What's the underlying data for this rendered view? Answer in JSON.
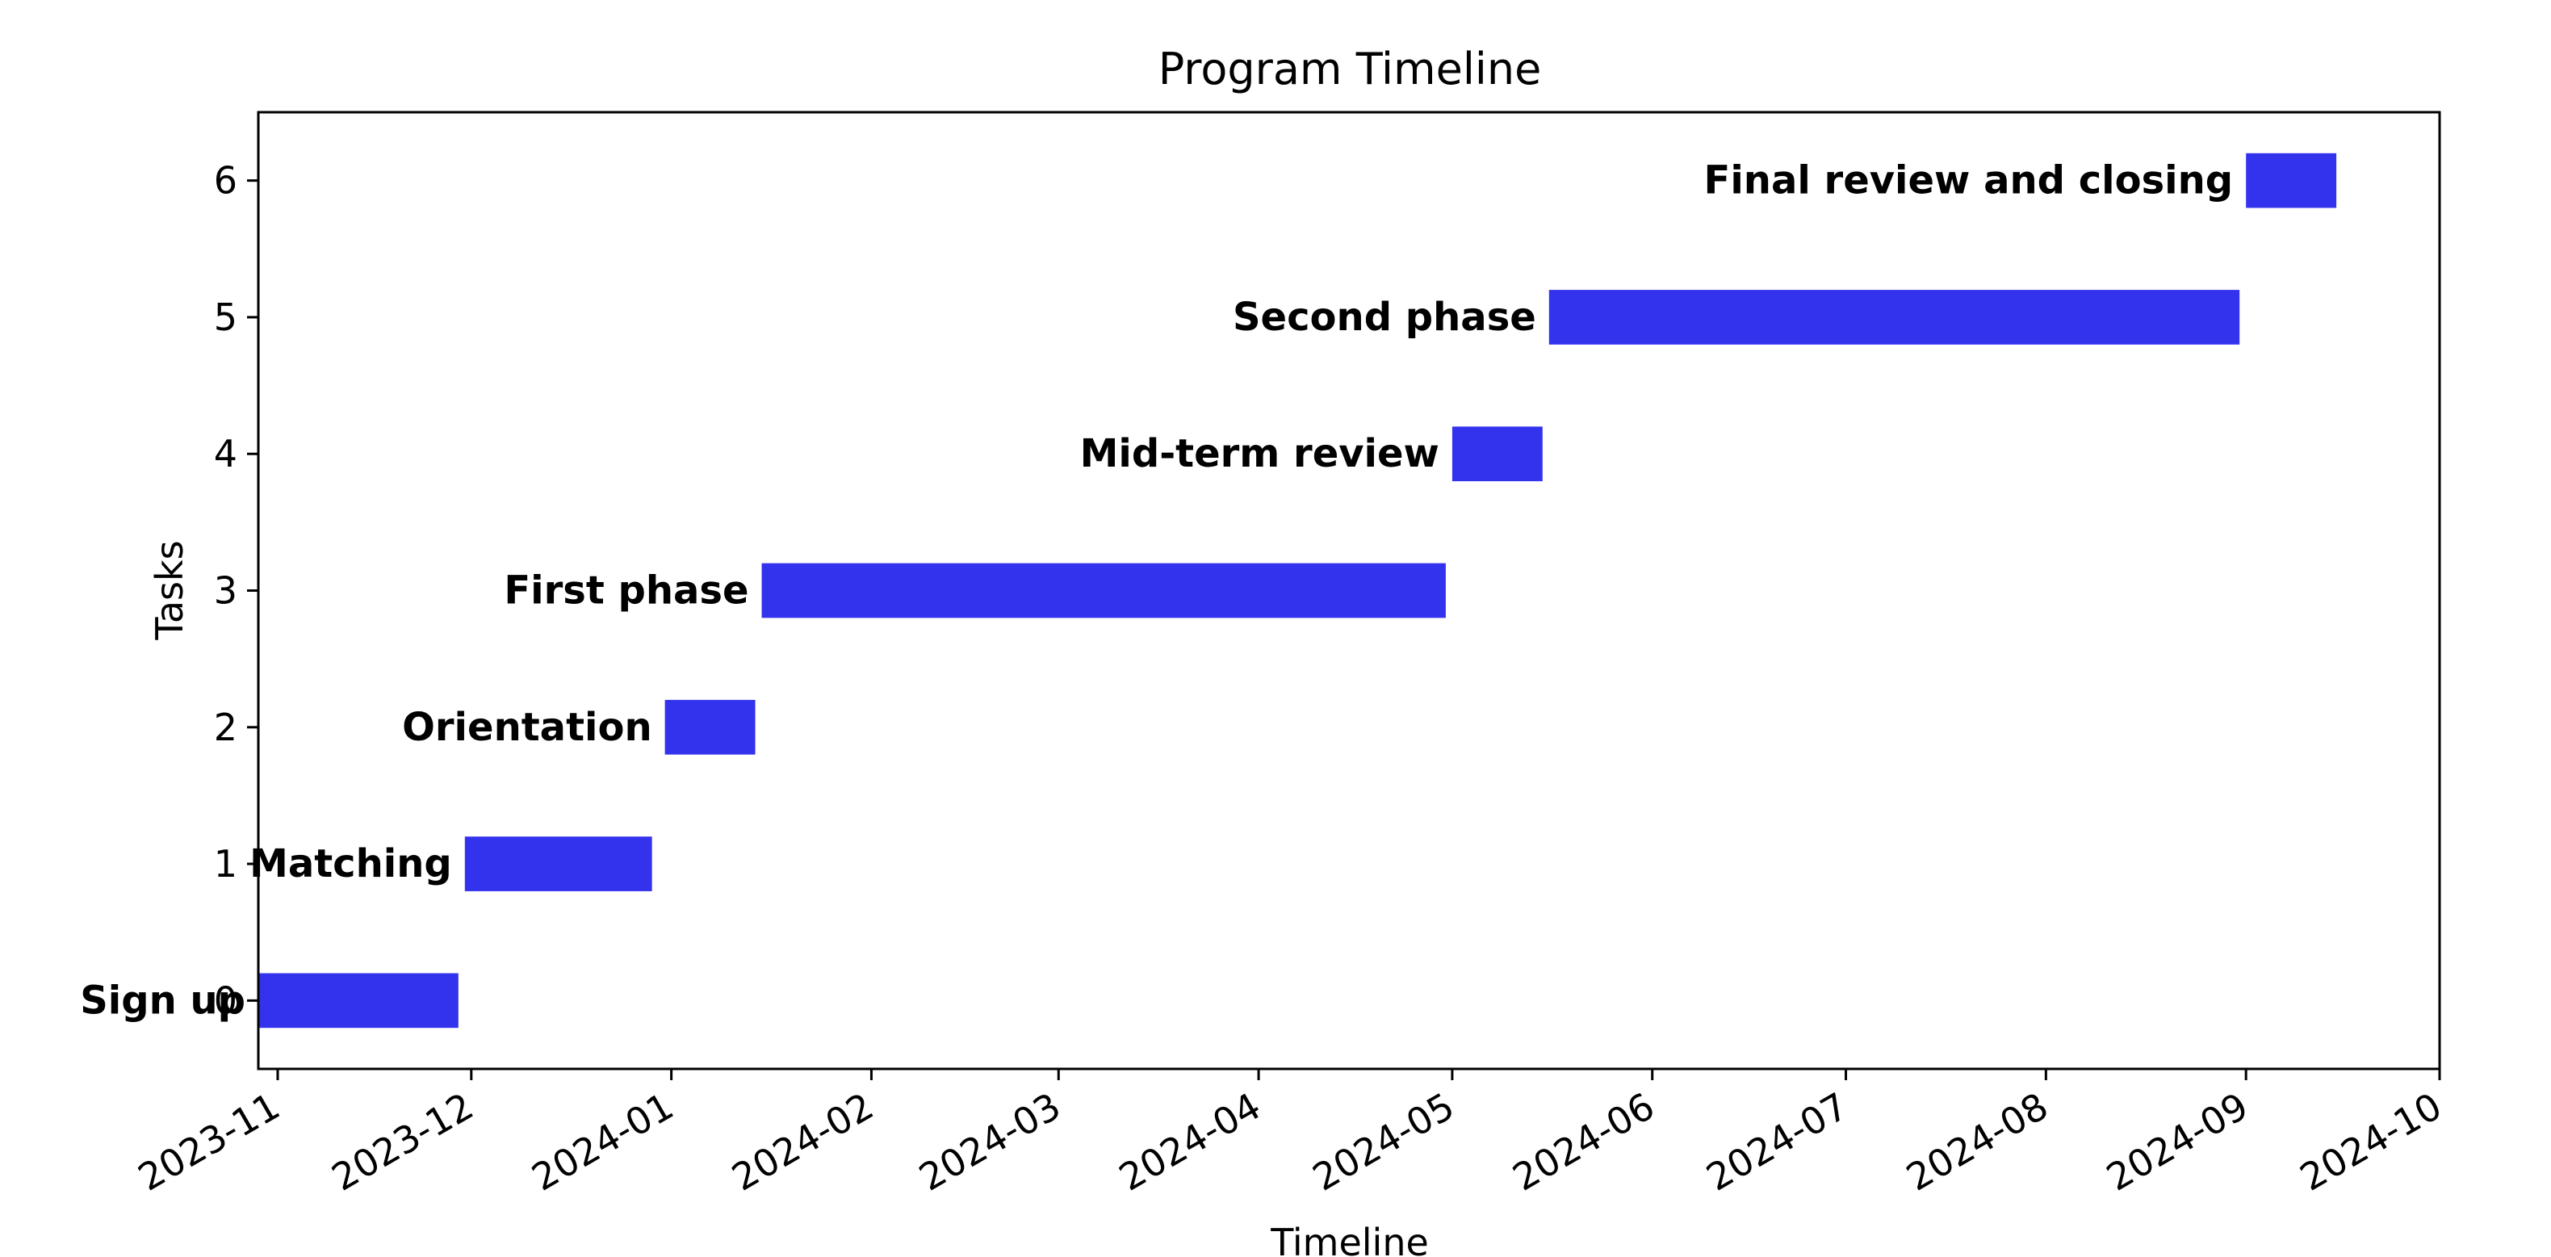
{
  "chart_data": {
    "type": "bar",
    "orientation": "horizontal",
    "title": "Program Timeline",
    "xlabel": "Timeline",
    "ylabel": "Tasks",
    "bar_color": "#3333ee",
    "xlim": [
      "2023-10-29",
      "2024-10-01"
    ],
    "ylim": [
      -0.5,
      6.5
    ],
    "y_ticks": [
      0,
      1,
      2,
      3,
      4,
      5,
      6
    ],
    "x_ticks": [
      "2023-11",
      "2023-12",
      "2024-01",
      "2024-02",
      "2024-03",
      "2024-04",
      "2024-05",
      "2024-06",
      "2024-07",
      "2024-08",
      "2024-09",
      "2024-10"
    ],
    "grid": false,
    "tasks": [
      {
        "y": 0,
        "name": "Sign up",
        "start": "2023-10-29",
        "end": "2023-11-29"
      },
      {
        "y": 1,
        "name": "Matching",
        "start": "2023-11-30",
        "end": "2023-12-29"
      },
      {
        "y": 2,
        "name": "Orientation",
        "start": "2023-12-31",
        "end": "2024-01-14"
      },
      {
        "y": 3,
        "name": "First phase",
        "start": "2024-01-15",
        "end": "2024-04-30"
      },
      {
        "y": 4,
        "name": "Mid-term review",
        "start": "2024-05-01",
        "end": "2024-05-15"
      },
      {
        "y": 5,
        "name": "Second phase",
        "start": "2024-05-16",
        "end": "2024-08-31"
      },
      {
        "y": 6,
        "name": "Final review and closing",
        "start": "2024-09-01",
        "end": "2024-09-15"
      }
    ]
  }
}
